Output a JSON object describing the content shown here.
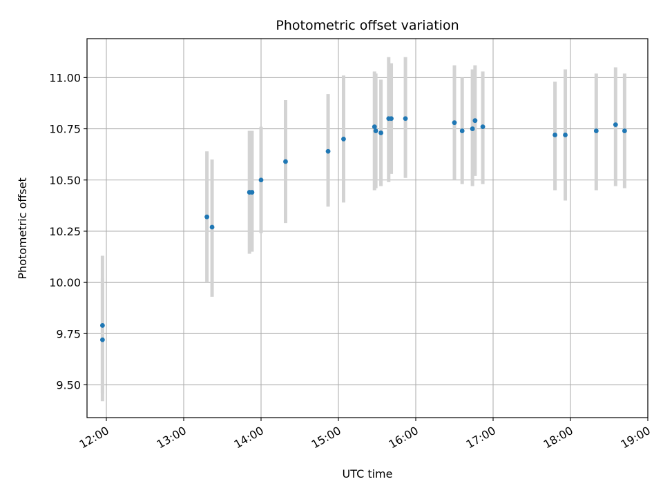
{
  "chart_data": {
    "type": "scatter",
    "title": "Photometric offset variation",
    "xlabel": "UTC time",
    "ylabel": "Photometric offset",
    "x_unit": "UTC time (HH:MM)",
    "xlim": [
      "11:45",
      "19:00"
    ],
    "ylim": [
      9.34,
      11.19
    ],
    "x_ticks": [
      "12:00",
      "13:00",
      "14:00",
      "15:00",
      "16:00",
      "17:00",
      "18:00",
      "19:00"
    ],
    "y_ticks": [
      "9.50",
      "9.75",
      "10.00",
      "10.25",
      "10.50",
      "10.75",
      "11.00"
    ],
    "grid": true,
    "point_color": "#1f77b4",
    "errorbar_color": "#d3d3d3",
    "series": [
      {
        "points": [
          {
            "x": "11:57",
            "y": 9.79,
            "ylow": 9.46,
            "yhigh": 10.13
          },
          {
            "x": "11:57",
            "y": 9.72,
            "ylow": 9.42,
            "yhigh": 10.02
          },
          {
            "x": "13:18",
            "y": 10.32,
            "ylow": 10.0,
            "yhigh": 10.64
          },
          {
            "x": "13:22",
            "y": 10.27,
            "ylow": 9.93,
            "yhigh": 10.6
          },
          {
            "x": "13:51",
            "y": 10.44,
            "ylow": 10.14,
            "yhigh": 10.74
          },
          {
            "x": "13:53",
            "y": 10.44,
            "ylow": 10.15,
            "yhigh": 10.74
          },
          {
            "x": "14:00",
            "y": 10.5,
            "ylow": 10.24,
            "yhigh": 10.76
          },
          {
            "x": "14:19",
            "y": 10.59,
            "ylow": 10.29,
            "yhigh": 10.89
          },
          {
            "x": "14:52",
            "y": 10.64,
            "ylow": 10.37,
            "yhigh": 10.92
          },
          {
            "x": "15:04",
            "y": 10.7,
            "ylow": 10.39,
            "yhigh": 11.01
          },
          {
            "x": "15:28",
            "y": 10.76,
            "ylow": 10.45,
            "yhigh": 11.03
          },
          {
            "x": "15:29",
            "y": 10.74,
            "ylow": 10.46,
            "yhigh": 11.02
          },
          {
            "x": "15:33",
            "y": 10.73,
            "ylow": 10.47,
            "yhigh": 10.99
          },
          {
            "x": "15:39",
            "y": 10.8,
            "ylow": 10.49,
            "yhigh": 11.1
          },
          {
            "x": "15:41",
            "y": 10.8,
            "ylow": 10.53,
            "yhigh": 11.07
          },
          {
            "x": "15:52",
            "y": 10.8,
            "ylow": 10.51,
            "yhigh": 11.1
          },
          {
            "x": "16:30",
            "y": 10.78,
            "ylow": 10.5,
            "yhigh": 11.06
          },
          {
            "x": "16:36",
            "y": 10.74,
            "ylow": 10.48,
            "yhigh": 11.0
          },
          {
            "x": "16:44",
            "y": 10.75,
            "ylow": 10.47,
            "yhigh": 11.04
          },
          {
            "x": "16:46",
            "y": 10.79,
            "ylow": 10.52,
            "yhigh": 11.06
          },
          {
            "x": "16:52",
            "y": 10.76,
            "ylow": 10.48,
            "yhigh": 11.03
          },
          {
            "x": "17:48",
            "y": 10.72,
            "ylow": 10.45,
            "yhigh": 10.98
          },
          {
            "x": "17:56",
            "y": 10.72,
            "ylow": 10.4,
            "yhigh": 11.04
          },
          {
            "x": "18:20",
            "y": 10.74,
            "ylow": 10.45,
            "yhigh": 11.02
          },
          {
            "x": "18:35",
            "y": 10.77,
            "ylow": 10.47,
            "yhigh": 11.05
          },
          {
            "x": "18:42",
            "y": 10.74,
            "ylow": 10.46,
            "yhigh": 11.02
          }
        ]
      }
    ]
  }
}
